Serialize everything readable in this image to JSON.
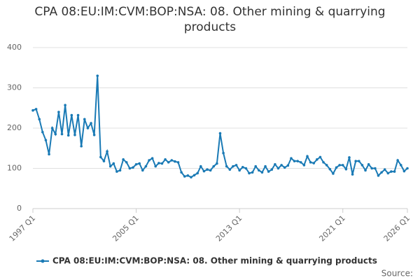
{
  "chart_data": {
    "type": "line",
    "title": "CPA 08:EU:IM:CVM:BOP:NSA: 08. Other mining & quarrying products",
    "source": "Source:",
    "x": [
      1997,
      1997.25,
      1997.5,
      1997.75,
      1998,
      1998.25,
      1998.5,
      1998.75,
      1999,
      1999.25,
      1999.5,
      1999.75,
      2000,
      2000.25,
      2000.5,
      2000.75,
      2001,
      2001.25,
      2001.5,
      2001.75,
      2002,
      2002.25,
      2002.5,
      2002.75,
      2003,
      2003.25,
      2003.5,
      2003.75,
      2004,
      2004.25,
      2004.5,
      2004.75,
      2005,
      2005.25,
      2005.5,
      2005.75,
      2006,
      2006.25,
      2006.5,
      2006.75,
      2007,
      2007.25,
      2007.5,
      2007.75,
      2008,
      2008.25,
      2008.5,
      2008.75,
      2009,
      2009.25,
      2009.5,
      2009.75,
      2010,
      2010.25,
      2010.5,
      2010.75,
      2011,
      2011.25,
      2011.5,
      2011.75,
      2012,
      2012.25,
      2012.5,
      2012.75,
      2013,
      2013.25,
      2013.5,
      2013.75,
      2014,
      2014.25,
      2014.5,
      2014.75,
      2015,
      2015.25,
      2015.5,
      2015.75,
      2016,
      2016.25,
      2016.5,
      2016.75,
      2017,
      2017.25,
      2017.5,
      2017.75,
      2018,
      2018.25,
      2018.5,
      2018.75,
      2019,
      2019.25,
      2019.5,
      2019.75,
      2020,
      2020.25,
      2020.5,
      2020.75,
      2021,
      2021.25,
      2021.5,
      2021.75,
      2022,
      2022.25,
      2022.5,
      2022.75,
      2023,
      2023.25,
      2023.5,
      2023.75,
      2024,
      2024.25,
      2024.5,
      2024.75,
      2025,
      2025.25,
      2025.5,
      2025.75,
      2026
    ],
    "series": [
      {
        "name": "CPA 08:EU:IM:CVM:BOP:NSA: 08. Other mining & quarrying products",
        "color": "#1a7ab5",
        "values": [
          244,
          247,
          222,
          190,
          170,
          135,
          200,
          185,
          240,
          185,
          257,
          182,
          232,
          183,
          232,
          155,
          222,
          200,
          212,
          183,
          330,
          128,
          118,
          142,
          105,
          112,
          92,
          95,
          122,
          115,
          100,
          102,
          110,
          112,
          95,
          105,
          120,
          125,
          105,
          113,
          112,
          122,
          115,
          120,
          117,
          115,
          90,
          80,
          82,
          78,
          83,
          88,
          105,
          93,
          97,
          95,
          105,
          112,
          187,
          138,
          105,
          97,
          105,
          108,
          95,
          103,
          100,
          88,
          90,
          105,
          95,
          90,
          105,
          92,
          97,
          110,
          100,
          108,
          102,
          107,
          125,
          118,
          118,
          115,
          108,
          130,
          115,
          113,
          122,
          128,
          115,
          108,
          98,
          87,
          102,
          108,
          108,
          98,
          127,
          85,
          118,
          118,
          108,
          95,
          110,
          100,
          100,
          82,
          90,
          97,
          88,
          92,
          92,
          120,
          108,
          93,
          100
        ]
      }
    ],
    "xlim": [
      1997,
      2026
    ],
    "xticks": [
      {
        "value": 1997,
        "label": "1997 Q1"
      },
      {
        "value": 2005,
        "label": "2005 Q1"
      },
      {
        "value": 2013,
        "label": "2013 Q1"
      },
      {
        "value": 2021,
        "label": "2021 Q1"
      },
      {
        "value": 2026,
        "label": "2026 Q1"
      }
    ],
    "ylim": [
      0,
      400
    ],
    "yticks": [
      0,
      100,
      200,
      300,
      400
    ],
    "grid": true,
    "legend": "bottom"
  }
}
